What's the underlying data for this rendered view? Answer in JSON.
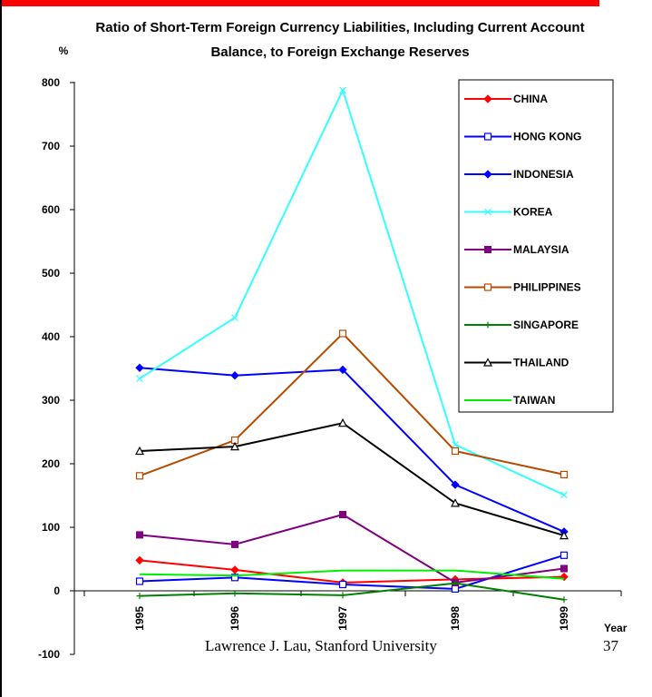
{
  "slide": {
    "footer": "Lawrence J. Lau, Stanford University",
    "page_number": "37"
  },
  "chart_data": {
    "type": "line",
    "title_line1": "Ratio of Short-Term Foreign Currency Liabilities, Including Current Account",
    "title_line2": "Balance, to Foreign Exchange Reserves",
    "ylabel": "%",
    "xlabel": "Year",
    "categories": [
      "1995",
      "1996",
      "1997",
      "1998",
      "1999"
    ],
    "yticks": [
      -100,
      0,
      100,
      200,
      300,
      400,
      500,
      600,
      700,
      800
    ],
    "ylim": [
      -100,
      800
    ],
    "legend_position": "top-right",
    "series": [
      {
        "name": "CHINA",
        "color": "#ff0000",
        "marker": "diamond",
        "values": [
          48,
          33,
          13,
          18,
          22
        ]
      },
      {
        "name": "HONG KONG",
        "color": "#0000ff",
        "marker": "square-open",
        "values": [
          15,
          21,
          10,
          3,
          56
        ]
      },
      {
        "name": "INDONESIA",
        "color": "#0000ff",
        "marker": "diamond",
        "values": [
          351,
          339,
          348,
          167,
          93
        ]
      },
      {
        "name": "KOREA",
        "color": "#33ffff",
        "marker": "x",
        "values": [
          334,
          430,
          788,
          230,
          151
        ]
      },
      {
        "name": "MALAYSIA",
        "color": "#800080",
        "marker": "square-filled",
        "values": [
          88,
          73,
          120,
          13,
          35
        ]
      },
      {
        "name": "PHILIPPINES",
        "color": "#b84a00",
        "marker": "square-open",
        "values": [
          181,
          237,
          405,
          220,
          183
        ]
      },
      {
        "name": "SINGAPORE",
        "color": "#008000",
        "marker": "plus",
        "values": [
          -8,
          -4,
          -7,
          12,
          -14
        ]
      },
      {
        "name": "THAILAND",
        "color": "#000000",
        "marker": "triangle-open",
        "values": [
          220,
          227,
          264,
          138,
          87
        ]
      },
      {
        "name": "TAIWAN",
        "color": "#00ee00",
        "marker": "none",
        "values": [
          26,
          24,
          32,
          32,
          19
        ]
      }
    ]
  }
}
